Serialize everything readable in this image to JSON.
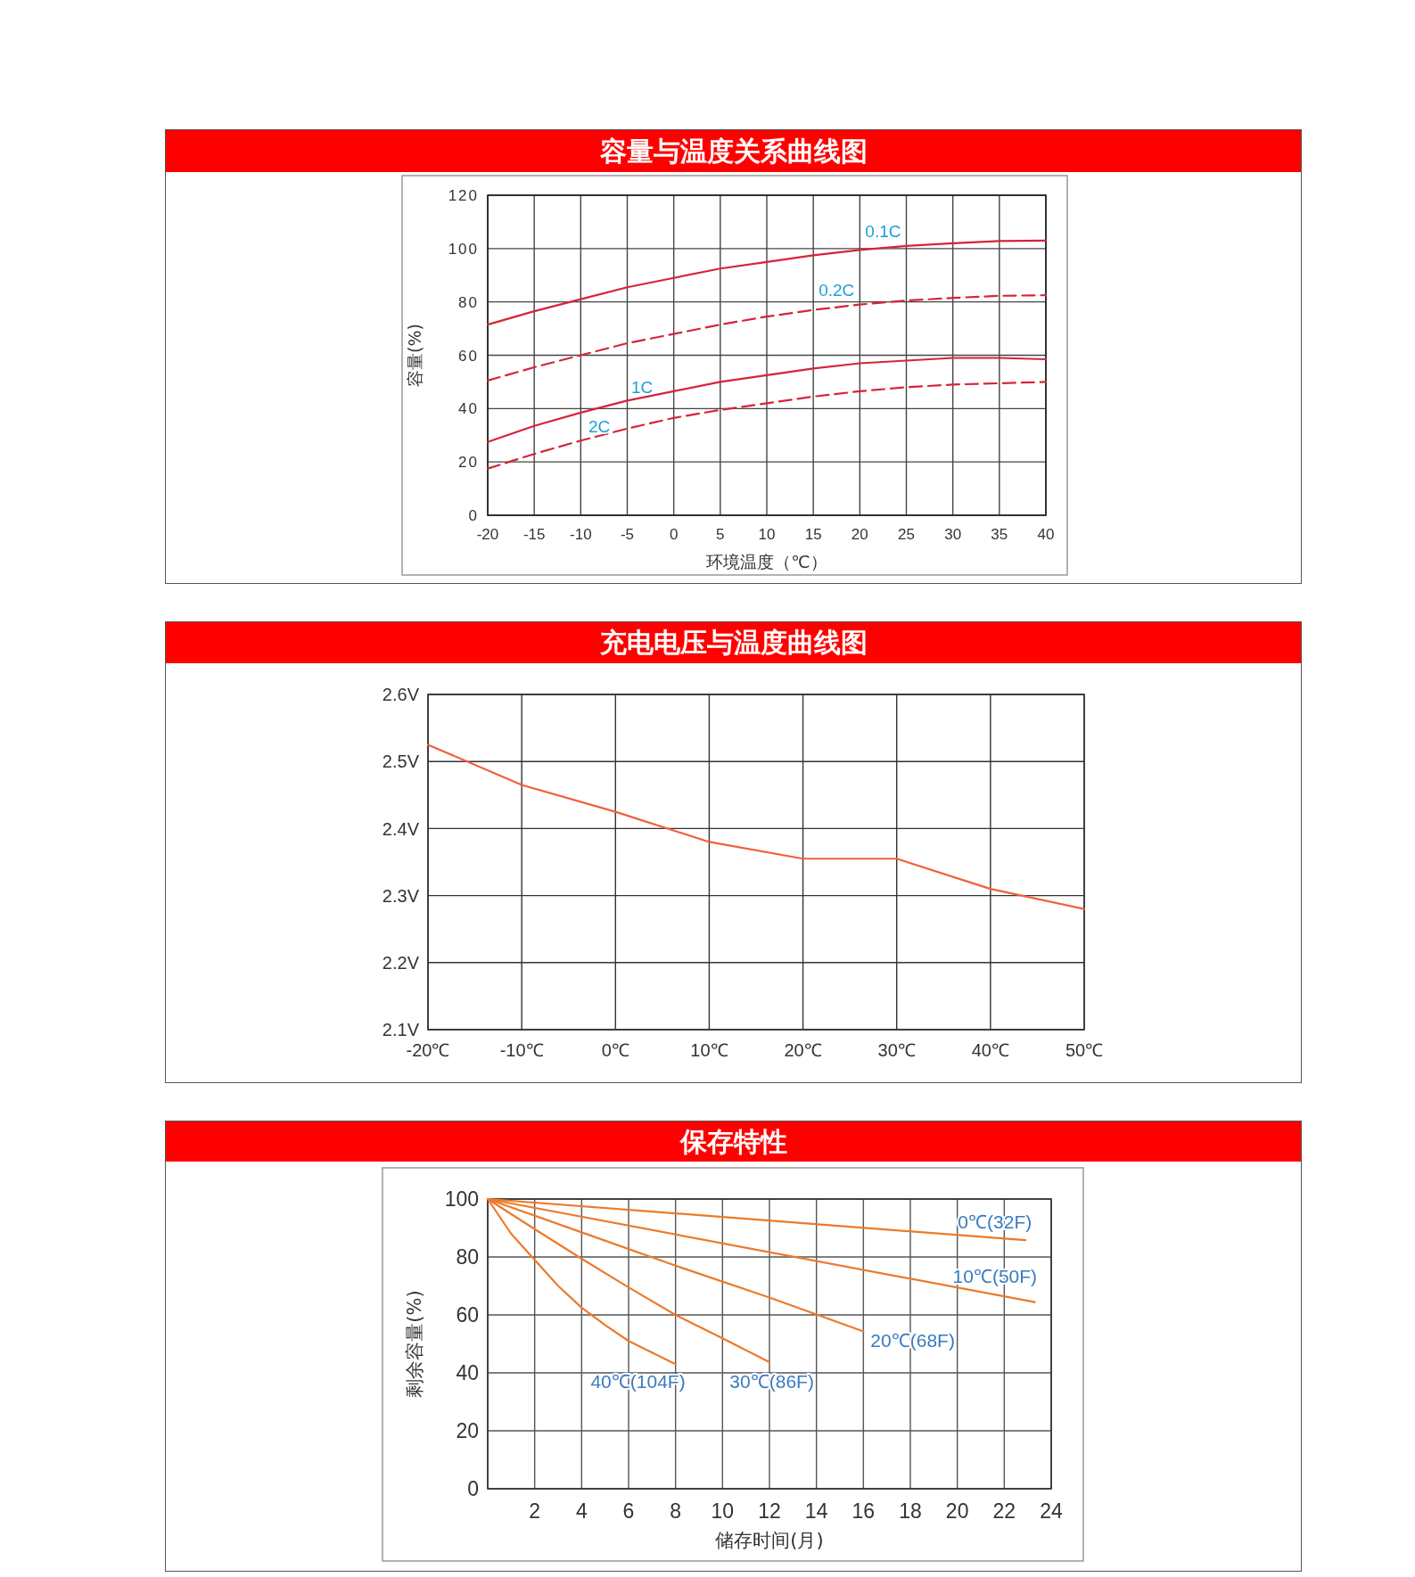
{
  "chart_data": [
    {
      "type": "line",
      "title": "容量与温度关系曲线图",
      "xlabel": "环境温度（℃）",
      "ylabel": "容量(%)",
      "grid": true,
      "xlim": [
        -20,
        40
      ],
      "xticks": [
        -20,
        -15,
        -10,
        -5,
        0,
        5,
        10,
        15,
        20,
        25,
        30,
        35,
        40
      ],
      "ylim": [
        0,
        120
      ],
      "yticks": [
        0,
        20,
        40,
        60,
        80,
        100,
        120
      ],
      "x": [
        -20,
        -15,
        -10,
        -5,
        0,
        5,
        10,
        15,
        20,
        25,
        30,
        35,
        40
      ],
      "series": [
        {
          "color": "#d6243a",
          "line_style": "solid",
          "values": [
            71.5,
            76.5,
            81,
            85.5,
            89,
            92.5,
            95,
            97.5,
            99.5,
            101,
            102,
            102.8,
            103
          ]
        },
        {
          "color": "#d6243a",
          "line_style": "dashed",
          "values": [
            50.5,
            55.5,
            60,
            64.5,
            68,
            71.5,
            74.5,
            77,
            79,
            80.5,
            81.5,
            82.3,
            82.5
          ]
        },
        {
          "color": "#d6243a",
          "line_style": "solid",
          "values": [
            27.5,
            33.5,
            38.5,
            43,
            46.5,
            50,
            52.5,
            55,
            57,
            58,
            59,
            59,
            58.5
          ]
        },
        {
          "color": "#d6243a",
          "line_style": "dashed",
          "values": [
            17.5,
            23,
            28,
            32.5,
            36.5,
            39.5,
            42,
            44.5,
            46.5,
            48,
            49,
            49.5,
            50
          ]
        }
      ],
      "annotations": [
        "0.1C",
        "0.2C",
        "1C",
        "2C"
      ]
    },
    {
      "type": "line",
      "title": "充电电压与温度曲线图",
      "grid": true,
      "xlim": [
        -20,
        50
      ],
      "xticks": [
        {
          "value": -20,
          "label": "-20℃"
        },
        {
          "value": -10,
          "label": "-10℃"
        },
        {
          "value": 0,
          "label": "0℃"
        },
        {
          "value": 10,
          "label": "10℃"
        },
        {
          "value": 20,
          "label": "20℃"
        },
        {
          "value": 30,
          "label": "30℃"
        },
        {
          "value": 40,
          "label": "40℃"
        },
        {
          "value": 50,
          "label": "50℃"
        }
      ],
      "ylim": [
        2.1,
        2.6
      ],
      "yticks": [
        {
          "value": 2.1,
          "label": "2.1V"
        },
        {
          "value": 2.2,
          "label": "2.2V"
        },
        {
          "value": 2.3,
          "label": "2.3V"
        },
        {
          "value": 2.4,
          "label": "2.4V"
        },
        {
          "value": 2.5,
          "label": "2.5V"
        },
        {
          "value": 2.6,
          "label": "2.6V"
        }
      ],
      "x": [
        -20,
        -10,
        0,
        10,
        20,
        30,
        40,
        50
      ],
      "series": [
        {
          "color": "#f0603c",
          "values": [
            2.525,
            2.465,
            2.425,
            2.38,
            2.355,
            2.355,
            2.31,
            2.28
          ]
        }
      ]
    },
    {
      "type": "line",
      "title": "保存特性",
      "xlabel": "储存时间(月)",
      "ylabel": "剩余容量(%)",
      "grid": true,
      "xlim": [
        0,
        24
      ],
      "xticks": [
        {
          "value": 0,
          "label": null
        },
        2,
        4,
        6,
        8,
        10,
        12,
        14,
        16,
        18,
        20,
        22,
        24
      ],
      "ylim": [
        0,
        100
      ],
      "yticks": [
        0,
        20,
        40,
        60,
        80,
        100
      ],
      "series": [
        {
          "color": "#ec7a2a",
          "x": [
            0,
            22.9
          ],
          "values": [
            100,
            85.8
          ]
        },
        {
          "color": "#ec7a2a",
          "x": [
            0,
            23.3
          ],
          "values": [
            100,
            64.4
          ]
        },
        {
          "color": "#ec7a2a",
          "x": [
            0,
            4,
            8,
            12,
            16
          ],
          "values": [
            100,
            88.5,
            77,
            66,
            54.3
          ]
        },
        {
          "color": "#ec7a2a",
          "x": [
            0,
            2,
            4,
            6,
            8,
            10,
            12
          ],
          "values": [
            100,
            89.6,
            79.4,
            69.5,
            60,
            51.9,
            43.7
          ]
        },
        {
          "color": "#ec7a2a",
          "x": [
            0,
            1,
            2,
            3,
            4,
            5,
            6,
            7,
            8
          ],
          "values": [
            100,
            88,
            79,
            70,
            62.5,
            56.5,
            51,
            47,
            43
          ]
        }
      ],
      "annotations": [
        "0℃(32F)",
        "10℃(50F)",
        "20℃(68F)",
        "40℃(104F)",
        "30℃(86F)"
      ]
    }
  ]
}
